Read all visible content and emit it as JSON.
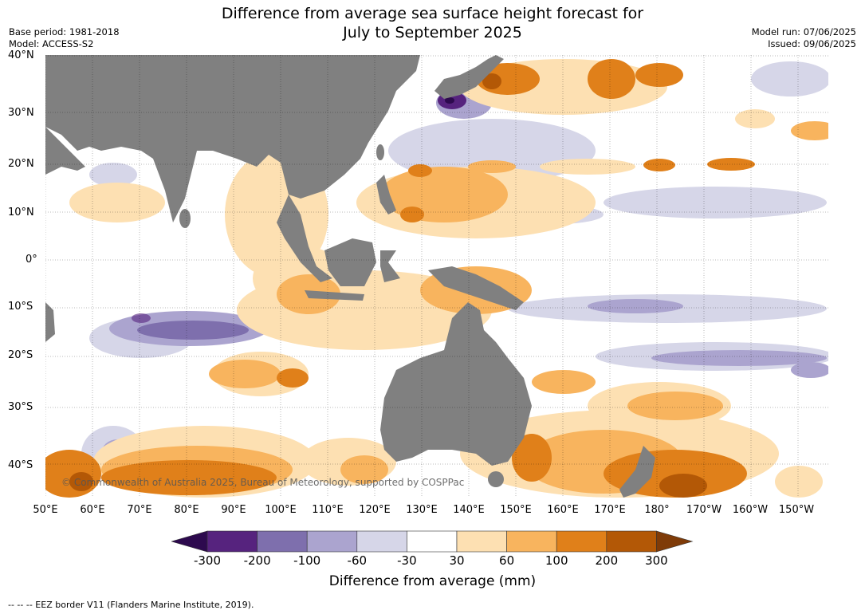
{
  "title": {
    "line1": "Difference from average sea surface height forecast for",
    "line2": "July to September 2025"
  },
  "meta": {
    "base_period": "Base period: 1981-2018",
    "model": "Model: ACCESS-S2",
    "model_run": "Model run: 07/06/2025",
    "issued": "Issued: 09/06/2025"
  },
  "axes": {
    "lat_labels": [
      "40°N",
      "30°N",
      "20°N",
      "10°N",
      "0°",
      "10°S",
      "20°S",
      "30°S",
      "40°S"
    ],
    "lon_labels": [
      "50°E",
      "60°E",
      "70°E",
      "80°E",
      "90°E",
      "100°E",
      "110°E",
      "120°E",
      "130°E",
      "140°E",
      "150°E",
      "160°E",
      "170°E",
      "180°",
      "170°W",
      "160°W",
      "150°W"
    ]
  },
  "copyright": "© Commonwealth of Australia 2025, Bureau of Meteorology, supported by COSPPac",
  "colorbar": {
    "ticks": [
      "-300",
      "-200",
      "-100",
      "-60",
      "-30",
      "30",
      "60",
      "100",
      "200",
      "300"
    ],
    "colors": [
      "#2d0a4e",
      "#56237e",
      "#7e6fad",
      "#aba4cf",
      "#d6d6e8",
      "#ffffff",
      "#fde0b2",
      "#f8b45e",
      "#e0801a",
      "#b35806",
      "#7f3b08"
    ],
    "label": "Difference from average (mm)"
  },
  "footer": "-- -- -- EEZ border V11 (Flanders Marine Institute, 2019).",
  "colors": {
    "land": "#808080",
    "ocean": "#ffffff"
  }
}
